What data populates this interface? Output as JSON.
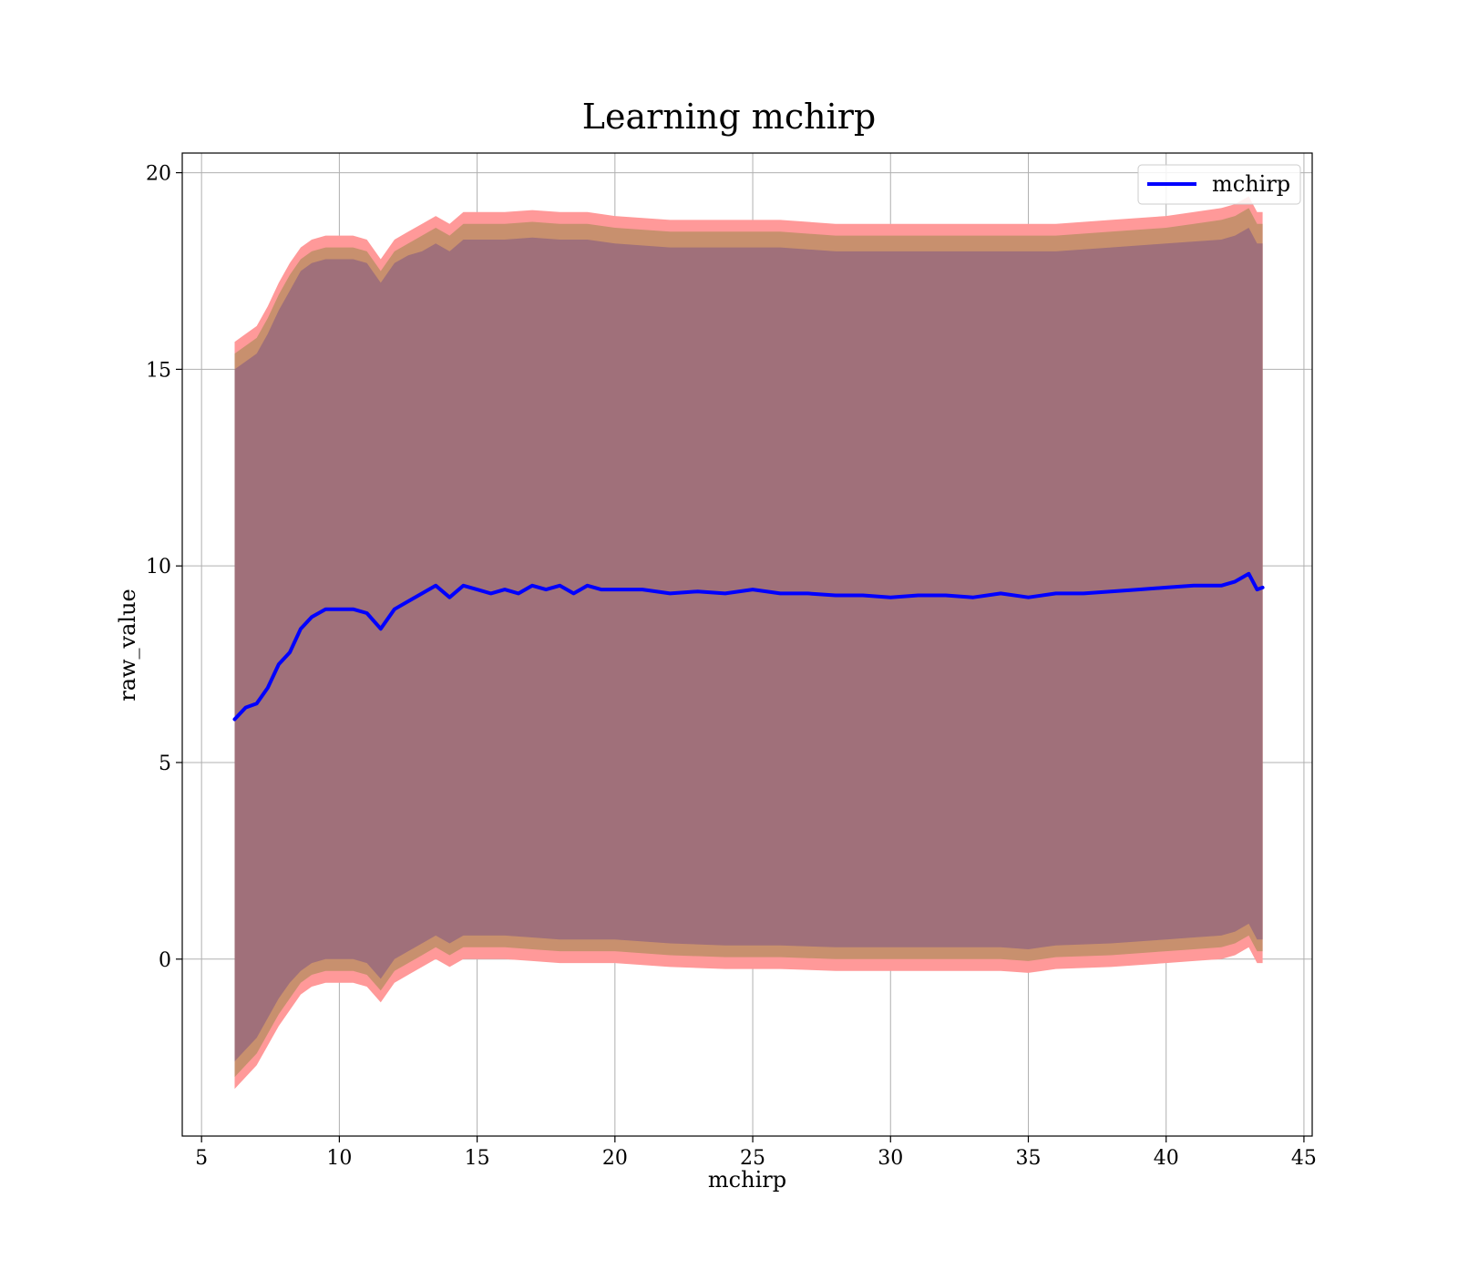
{
  "colors": {
    "line": "#0000ff",
    "band_outer": "#ff9999",
    "band_middle": "#c8906e",
    "band_inner": "#a0707a",
    "grid": "#b0b0b0",
    "axes": "#000000"
  },
  "chart_data": {
    "type": "line",
    "title": "Learning mchirp",
    "xlabel": "mchirp",
    "ylabel": "raw_value",
    "xlim": [
      4.3,
      45.3
    ],
    "ylim": [
      -4.5,
      20.5
    ],
    "xticks": [
      5,
      10,
      15,
      20,
      25,
      30,
      35,
      40,
      45
    ],
    "yticks": [
      0,
      5,
      10,
      15,
      20
    ],
    "xtick_labels": [
      "5",
      "10",
      "15",
      "20",
      "25",
      "30",
      "35",
      "40",
      "45"
    ],
    "ytick_labels": [
      "0",
      "5",
      "10",
      "15",
      "20"
    ],
    "grid": true,
    "legend": {
      "position": "top-right",
      "entries": [
        "mchirp"
      ]
    },
    "series": [
      {
        "name": "mchirp",
        "x": [
          6.2,
          6.6,
          7.0,
          7.4,
          7.8,
          8.2,
          8.6,
          9.0,
          9.5,
          10.0,
          10.5,
          11.0,
          11.5,
          12.0,
          12.5,
          13.0,
          13.5,
          14.0,
          14.5,
          15.0,
          15.5,
          16.0,
          16.5,
          17.0,
          17.5,
          18.0,
          18.5,
          19.0,
          19.5,
          20.0,
          21.0,
          22.0,
          23.0,
          24.0,
          25.0,
          26.0,
          27.0,
          28.0,
          29.0,
          30.0,
          31.0,
          32.0,
          33.0,
          34.0,
          35.0,
          36.0,
          37.0,
          38.0,
          39.0,
          40.0,
          41.0,
          42.0,
          42.5,
          43.0,
          43.3,
          43.5
        ],
        "y": [
          6.1,
          6.4,
          6.5,
          6.9,
          7.5,
          7.8,
          8.4,
          8.7,
          8.9,
          8.9,
          8.9,
          8.8,
          8.4,
          8.9,
          9.1,
          9.3,
          9.5,
          9.2,
          9.5,
          9.4,
          9.3,
          9.4,
          9.3,
          9.5,
          9.4,
          9.5,
          9.3,
          9.5,
          9.4,
          9.4,
          9.4,
          9.3,
          9.35,
          9.3,
          9.4,
          9.3,
          9.3,
          9.25,
          9.25,
          9.2,
          9.25,
          9.25,
          9.2,
          9.3,
          9.2,
          9.3,
          9.3,
          9.35,
          9.4,
          9.45,
          9.5,
          9.5,
          9.6,
          9.8,
          9.4,
          9.45
        ]
      }
    ],
    "bands": {
      "x": [
        6.2,
        6.6,
        7.0,
        7.4,
        7.8,
        8.2,
        8.6,
        9.0,
        9.5,
        10.0,
        10.5,
        11.0,
        11.5,
        12.0,
        12.5,
        13.0,
        13.5,
        14.0,
        14.5,
        15.0,
        16.0,
        17.0,
        18.0,
        19.0,
        20.0,
        22.0,
        24.0,
        26.0,
        28.0,
        30.0,
        32.0,
        34.0,
        35.0,
        36.0,
        38.0,
        40.0,
        41.0,
        42.0,
        42.5,
        43.0,
        43.3,
        43.5
      ],
      "inner_upper": [
        15.0,
        15.2,
        15.4,
        15.9,
        16.5,
        17.0,
        17.5,
        17.7,
        17.8,
        17.8,
        17.8,
        17.7,
        17.2,
        17.7,
        17.9,
        18.0,
        18.2,
        18.0,
        18.3,
        18.3,
        18.3,
        18.35,
        18.3,
        18.3,
        18.2,
        18.1,
        18.1,
        18.1,
        18.0,
        18.0,
        18.0,
        18.0,
        18.0,
        18.0,
        18.1,
        18.2,
        18.25,
        18.3,
        18.4,
        18.6,
        18.2,
        18.2
      ],
      "middle_upper": [
        15.4,
        15.6,
        15.8,
        16.3,
        16.9,
        17.4,
        17.8,
        18.0,
        18.1,
        18.1,
        18.1,
        18.0,
        17.5,
        18.0,
        18.2,
        18.4,
        18.6,
        18.4,
        18.7,
        18.7,
        18.7,
        18.75,
        18.7,
        18.7,
        18.6,
        18.5,
        18.5,
        18.5,
        18.4,
        18.4,
        18.4,
        18.4,
        18.4,
        18.4,
        18.5,
        18.6,
        18.7,
        18.8,
        18.9,
        19.1,
        18.7,
        18.7
      ],
      "outer_upper": [
        15.7,
        15.9,
        16.1,
        16.6,
        17.2,
        17.7,
        18.1,
        18.3,
        18.4,
        18.4,
        18.4,
        18.3,
        17.8,
        18.3,
        18.5,
        18.7,
        18.9,
        18.7,
        19.0,
        19.0,
        19.0,
        19.05,
        19.0,
        19.0,
        18.9,
        18.8,
        18.8,
        18.8,
        18.7,
        18.7,
        18.7,
        18.7,
        18.7,
        18.7,
        18.8,
        18.9,
        19.0,
        19.1,
        19.2,
        19.4,
        19.0,
        19.0
      ],
      "inner_lower": [
        -2.6,
        -2.3,
        -2.0,
        -1.5,
        -1.0,
        -0.6,
        -0.3,
        -0.1,
        0.0,
        0.0,
        0.0,
        -0.1,
        -0.5,
        0.0,
        0.2,
        0.4,
        0.6,
        0.4,
        0.6,
        0.6,
        0.6,
        0.55,
        0.5,
        0.5,
        0.5,
        0.4,
        0.35,
        0.35,
        0.3,
        0.3,
        0.3,
        0.3,
        0.25,
        0.35,
        0.4,
        0.5,
        0.55,
        0.6,
        0.7,
        0.9,
        0.5,
        0.5
      ],
      "middle_lower": [
        -3.0,
        -2.7,
        -2.4,
        -1.9,
        -1.4,
        -1.0,
        -0.6,
        -0.4,
        -0.3,
        -0.3,
        -0.3,
        -0.4,
        -0.8,
        -0.3,
        -0.1,
        0.1,
        0.3,
        0.1,
        0.3,
        0.3,
        0.3,
        0.25,
        0.2,
        0.2,
        0.2,
        0.1,
        0.05,
        0.05,
        0.0,
        0.0,
        0.0,
        0.0,
        -0.05,
        0.05,
        0.1,
        0.2,
        0.25,
        0.3,
        0.4,
        0.6,
        0.2,
        0.2
      ],
      "outer_lower": [
        -3.3,
        -3.0,
        -2.7,
        -2.2,
        -1.7,
        -1.3,
        -0.9,
        -0.7,
        -0.6,
        -0.6,
        -0.6,
        -0.7,
        -1.1,
        -0.6,
        -0.4,
        -0.2,
        0.0,
        -0.2,
        0.0,
        0.0,
        0.0,
        -0.05,
        -0.1,
        -0.1,
        -0.1,
        -0.2,
        -0.25,
        -0.25,
        -0.3,
        -0.3,
        -0.3,
        -0.3,
        -0.35,
        -0.25,
        -0.2,
        -0.1,
        -0.05,
        0.0,
        0.1,
        0.3,
        -0.1,
        -0.1
      ]
    }
  }
}
